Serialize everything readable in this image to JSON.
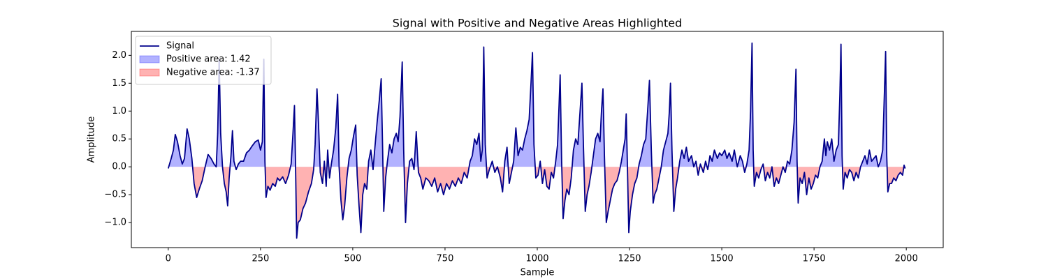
{
  "chart_data": {
    "type": "line",
    "title": "Signal with Positive and Negative Areas Highlighted",
    "x_label": "Sample",
    "y_label": "Amplitude",
    "x": [
      0,
      8,
      14,
      19,
      25,
      32,
      38,
      44,
      51,
      57,
      64,
      70,
      77,
      84,
      92,
      100,
      108,
      116,
      124,
      130,
      134,
      138,
      142,
      147,
      152,
      157,
      161,
      165,
      170,
      174,
      178,
      184,
      190,
      196,
      204,
      212,
      220,
      228,
      236,
      244,
      250,
      255,
      259,
      262,
      265,
      270,
      276,
      283,
      290,
      296,
      302,
      310,
      318,
      326,
      333,
      338,
      342,
      345,
      348,
      352,
      358,
      365,
      372,
      380,
      388,
      394,
      398,
      403,
      407,
      412,
      418,
      423,
      428,
      432,
      437,
      442,
      448,
      454,
      459,
      463,
      468,
      473,
      478,
      484,
      490,
      496,
      502,
      508,
      512,
      517,
      522,
      527,
      532,
      538,
      543,
      549,
      555,
      560,
      566,
      572,
      577,
      581,
      584,
      589,
      594,
      600,
      606,
      612,
      618,
      623,
      628,
      634,
      638,
      643,
      648,
      654,
      660,
      666,
      672,
      678,
      684,
      690,
      698,
      706,
      714,
      722,
      730,
      738,
      746,
      754,
      762,
      770,
      778,
      786,
      794,
      802,
      810,
      818,
      824,
      830,
      836,
      842,
      847,
      851,
      855,
      859,
      864,
      870,
      878,
      885,
      892,
      900,
      906,
      912,
      918,
      924,
      930,
      936,
      942,
      948,
      954,
      960,
      966,
      972,
      978,
      983,
      987,
      991,
      996,
      1002,
      1008,
      1014,
      1020,
      1026,
      1032,
      1038,
      1044,
      1050,
      1055,
      1059,
      1062,
      1066,
      1070,
      1075,
      1080,
      1086,
      1092,
      1098,
      1104,
      1110,
      1116,
      1121,
      1125,
      1130,
      1135,
      1140,
      1146,
      1152,
      1158,
      1164,
      1170,
      1174,
      1178,
      1182,
      1187,
      1192,
      1198,
      1204,
      1210,
      1216,
      1222,
      1228,
      1233,
      1238,
      1241,
      1244,
      1248,
      1252,
      1258,
      1264,
      1270,
      1276,
      1282,
      1288,
      1294,
      1299,
      1304,
      1309,
      1314,
      1318,
      1324,
      1330,
      1336,
      1342,
      1348,
      1354,
      1358,
      1361,
      1365,
      1370,
      1375,
      1380,
      1386,
      1392,
      1398,
      1404,
      1410,
      1418,
      1424,
      1430,
      1436,
      1442,
      1450,
      1456,
      1462,
      1468,
      1474,
      1480,
      1488,
      1494,
      1500,
      1508,
      1514,
      1520,
      1528,
      1534,
      1542,
      1550,
      1556,
      1562,
      1568,
      1574,
      1578,
      1582,
      1585,
      1588,
      1594,
      1600,
      1606,
      1612,
      1618,
      1624,
      1630,
      1636,
      1642,
      1648,
      1654,
      1660,
      1666,
      1672,
      1678,
      1684,
      1690,
      1696,
      1701,
      1704,
      1707,
      1712,
      1718,
      1724,
      1730,
      1736,
      1742,
      1748,
      1754,
      1760,
      1766,
      1772,
      1778,
      1782,
      1786,
      1792,
      1798,
      1804,
      1810,
      1816,
      1820,
      1823,
      1826,
      1829,
      1834,
      1840,
      1846,
      1852,
      1858,
      1864,
      1870,
      1876,
      1882,
      1888,
      1894,
      1900,
      1906,
      1912,
      1918,
      1924,
      1930,
      1936,
      1941,
      1944,
      1947,
      1950,
      1955,
      1960,
      1966,
      1972,
      1978,
      1984,
      1990,
      1994,
      1997
    ],
    "series": [
      {
        "name": "Signal",
        "color": "#00008b",
        "values": [
          -0.03,
          0.15,
          0.3,
          0.58,
          0.45,
          0.2,
          0.05,
          0.15,
          0.68,
          0.5,
          0.15,
          -0.3,
          -0.55,
          -0.4,
          -0.25,
          0.0,
          0.22,
          0.15,
          0.05,
          0.0,
          0.6,
          1.93,
          0.6,
          0.0,
          -0.3,
          -0.45,
          -0.7,
          -0.2,
          0.2,
          0.65,
          0.1,
          -0.05,
          0.05,
          0.1,
          0.1,
          0.25,
          0.3,
          0.38,
          0.45,
          0.48,
          0.3,
          0.45,
          1.93,
          0.1,
          -0.55,
          -0.35,
          -0.42,
          -0.3,
          -0.35,
          -0.2,
          -0.25,
          -0.18,
          -0.3,
          -0.15,
          0.05,
          0.6,
          1.1,
          0.0,
          -1.28,
          -1.0,
          -0.95,
          -0.75,
          -0.65,
          -0.45,
          -0.3,
          -0.05,
          0.4,
          1.4,
          0.8,
          -0.1,
          -0.3,
          0.1,
          -0.35,
          0.3,
          -0.2,
          0.05,
          0.3,
          0.7,
          1.3,
          0.0,
          -0.6,
          -0.95,
          -0.7,
          -0.2,
          0.15,
          0.3,
          0.55,
          0.75,
          -0.15,
          -0.7,
          -1.18,
          -0.5,
          -0.3,
          -0.4,
          0.1,
          0.3,
          -0.05,
          0.35,
          0.8,
          1.2,
          1.58,
          0.3,
          -0.8,
          -0.2,
          0.1,
          0.4,
          0.25,
          0.5,
          0.6,
          0.45,
          0.9,
          1.88,
          0.3,
          -1.0,
          -0.3,
          0.1,
          0.15,
          -0.05,
          0.63,
          -0.1,
          -0.2,
          -0.4,
          -0.2,
          -0.25,
          -0.35,
          -0.2,
          -0.45,
          -0.3,
          -0.5,
          -0.3,
          -0.4,
          -0.25,
          -0.35,
          -0.2,
          -0.3,
          -0.1,
          -0.2,
          0.1,
          0.2,
          0.5,
          0.4,
          0.6,
          0.1,
          0.3,
          2.15,
          0.4,
          -0.2,
          -0.05,
          0.1,
          -0.1,
          0.0,
          -0.2,
          -0.45,
          0.1,
          0.35,
          -0.3,
          -0.1,
          0.1,
          0.7,
          0.2,
          0.35,
          0.3,
          0.5,
          0.65,
          0.85,
          1.5,
          2.05,
          0.4,
          -0.2,
          -0.15,
          0.1,
          -0.3,
          -0.05,
          -0.35,
          -0.4,
          -0.1,
          -0.2,
          0.1,
          0.4,
          1.1,
          1.65,
          0.1,
          -0.93,
          -0.6,
          -0.4,
          -0.5,
          -0.2,
          0.3,
          0.5,
          0.4,
          1.0,
          1.5,
          0.4,
          -0.8,
          -0.5,
          -0.35,
          -0.1,
          0.2,
          0.5,
          0.6,
          0.45,
          1.0,
          1.4,
          0.2,
          -1.0,
          -0.8,
          -0.6,
          -0.4,
          -0.3,
          -0.25,
          -0.1,
          0.1,
          0.3,
          0.5,
          0.95,
          0.1,
          -1.18,
          -0.8,
          -0.5,
          -0.3,
          -0.2,
          0.05,
          0.2,
          0.4,
          0.5,
          1.0,
          1.55,
          0.3,
          -0.65,
          -0.5,
          -0.4,
          -0.2,
          0.0,
          0.3,
          0.45,
          0.6,
          1.0,
          1.5,
          0.3,
          -0.8,
          -0.4,
          -0.2,
          0.1,
          0.3,
          0.15,
          0.35,
          0.1,
          0.2,
          0.0,
          0.1,
          -0.15,
          0.05,
          -0.1,
          0.1,
          -0.05,
          0.2,
          0.1,
          0.3,
          0.15,
          0.25,
          0.2,
          0.3,
          0.15,
          0.25,
          0.1,
          0.3,
          0.0,
          0.2,
          0.1,
          -0.1,
          0.05,
          0.3,
          1.0,
          2.22,
          0.3,
          -0.35,
          -0.1,
          -0.2,
          -0.05,
          0.05,
          -0.25,
          -0.1,
          -0.2,
          0.0,
          -0.35,
          -0.2,
          -0.3,
          -0.15,
          0.0,
          -0.1,
          0.1,
          0.05,
          0.3,
          0.8,
          1.75,
          0.1,
          -0.65,
          -0.2,
          -0.3,
          -0.1,
          -0.5,
          -0.2,
          -0.4,
          -0.3,
          -0.15,
          -0.2,
          0.0,
          0.1,
          0.5,
          0.2,
          0.45,
          0.3,
          0.5,
          0.1,
          0.3,
          0.4,
          1.3,
          2.2,
          0.2,
          -0.4,
          -0.1,
          -0.2,
          -0.05,
          -0.1,
          -0.25,
          -0.1,
          -0.2,
          0.0,
          0.1,
          0.2,
          0.05,
          0.3,
          0.1,
          0.15,
          0.2,
          0.0,
          0.1,
          0.3,
          1.4,
          2.07,
          0.2,
          -0.45,
          -0.3,
          -0.3,
          -0.2,
          -0.25,
          -0.15,
          -0.1,
          -0.15,
          0.03,
          -0.03
        ]
      }
    ],
    "fills": [
      {
        "name": "Positive area: 1.42",
        "color": "#0000ff",
        "alpha": 0.3,
        "where": "above"
      },
      {
        "name": "Negative area: -1.37",
        "color": "#ff0000",
        "alpha": 0.3,
        "where": "below"
      }
    ],
    "xlim": [
      -100,
      2100
    ],
    "ylim": [
      -1.45,
      2.43
    ],
    "xticks": [
      0,
      250,
      500,
      750,
      1000,
      1250,
      1500,
      1750,
      2000
    ],
    "yticks": [
      {
        "value": -1.0,
        "label": "−1.0"
      },
      {
        "value": -0.5,
        "label": "−0.5"
      },
      {
        "value": 0.0,
        "label": "0.0"
      },
      {
        "value": 0.5,
        "label": "0.5"
      },
      {
        "value": 1.0,
        "label": "1.0"
      },
      {
        "value": 1.5,
        "label": "1.5"
      },
      {
        "value": 2.0,
        "label": "2.0"
      }
    ],
    "legend": "upper left"
  }
}
